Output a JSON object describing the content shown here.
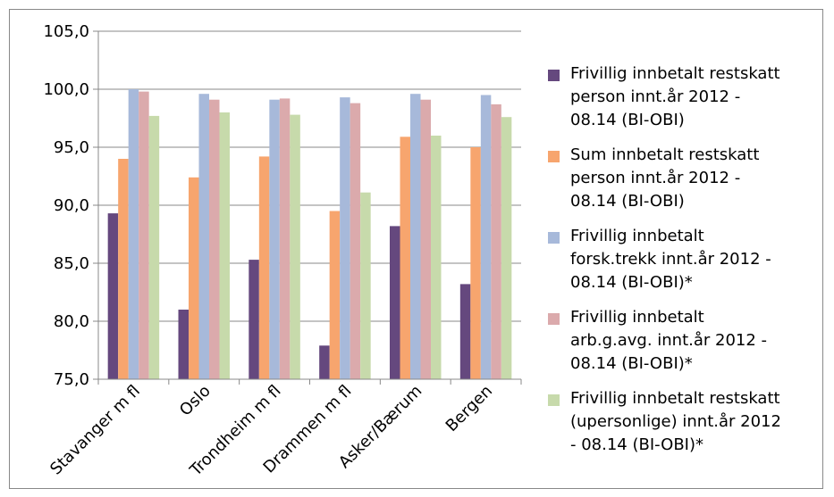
{
  "chart_data": {
    "type": "bar",
    "categories": [
      "Stavanger m fl",
      "Oslo",
      "Trondheim m fl",
      "Drammen m fl",
      "Asker/Bærum",
      "Bergen"
    ],
    "ylim": [
      75,
      105
    ],
    "yticks": [
      "75,0",
      "80,0",
      "85,0",
      "90,0",
      "95,0",
      "100,0",
      "105,0"
    ],
    "ytick_values": [
      75,
      80,
      85,
      90,
      95,
      100,
      105
    ],
    "grid": true,
    "legend_position": "right",
    "series": [
      {
        "name": "Frivillig innbetalt restskatt\nperson innt.år 2012 -\n08.14  (BI-OBI)",
        "color": "#65487E",
        "values": [
          89.3,
          81.0,
          85.3,
          77.9,
          88.2,
          83.2
        ]
      },
      {
        "name": "Sum innbetalt restskatt\nperson innt.år 2012 -\n08.14 (BI-OBI)",
        "color": "#F7A56E",
        "values": [
          94.0,
          92.4,
          94.2,
          89.5,
          95.9,
          95.0
        ]
      },
      {
        "name": "Frivillig innbetalt\nforsk.trekk innt.år 2012 -\n08.14  (BI-OBI)*",
        "color": "#A7B9DA",
        "values": [
          100.0,
          99.6,
          99.1,
          99.3,
          99.6,
          99.5
        ]
      },
      {
        "name": "Frivillig innbetalt\narb.g.avg. innt.år 2012 -\n08.14  (BI-OBI)*",
        "color": "#DBAAAC",
        "values": [
          99.8,
          99.1,
          99.2,
          98.8,
          99.1,
          98.7
        ]
      },
      {
        "name": "Frivillig innbetalt restskatt\n(upersonlige) innt.år 2012\n- 08.14  (BI-OBI)*",
        "color": "#C7DAAB",
        "values": [
          97.7,
          98.0,
          97.8,
          91.1,
          96.0,
          97.6
        ]
      }
    ]
  }
}
